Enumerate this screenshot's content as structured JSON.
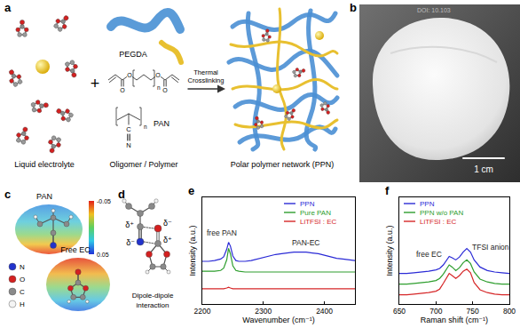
{
  "panels": {
    "a": {
      "label": "a",
      "liquid_electrolyte": "Liquid electrolyte",
      "plus": "+",
      "pegda": "PEGDA",
      "pan": "PAN",
      "pegda_structure": {
        "atoms": [
          "O",
          "O",
          "O",
          "O"
        ],
        "repeat": "n"
      },
      "pan_structure": {
        "atoms": [
          "C",
          "N"
        ],
        "repeat": "n"
      },
      "oligomer_polymer": "Oligomer / Polymer",
      "arrow_text": [
        "Thermal",
        "Crosslinking"
      ],
      "product": "Polar polymer network (PPN)"
    },
    "b": {
      "label": "b",
      "scale_bar": "1 cm",
      "watermark": "DOI: 10.103"
    },
    "c": {
      "label": "c",
      "molecules": [
        "PAN",
        "Free EC"
      ],
      "colorbar": {
        "range": [
          -0.05,
          0.05
        ],
        "ticks": [
          -0.05,
          0.05
        ]
      },
      "atom_legend": [
        "N",
        "O",
        "C",
        "H"
      ]
    },
    "d": {
      "label": "d",
      "charges": [
        "δ⁺",
        "δ⁻",
        "δ⁻",
        "δ⁺"
      ],
      "caption": [
        "Dipole-dipole",
        "interaction"
      ]
    }
  },
  "chart_data": [
    {
      "type": "line",
      "title": "e",
      "x_label": "Wavenumber (cm⁻¹)",
      "y_label": "Intensity (a.u.)",
      "x": [
        2200,
        2210,
        2220,
        2230,
        2235,
        2240,
        2243,
        2246,
        2250,
        2255,
        2260,
        2270,
        2280,
        2290,
        2300,
        2310,
        2320,
        2330,
        2340,
        2350,
        2360,
        2370,
        2380,
        2390,
        2400,
        2410,
        2420,
        2430,
        2440,
        2450
      ],
      "series": [
        {
          "name": "PPN",
          "color": "#2b2bd6",
          "values": [
            5.6,
            5.6,
            5.7,
            5.9,
            6.2,
            7.2,
            8.1,
            7.6,
            6.3,
            5.7,
            5.6,
            5.6,
            5.7,
            5.9,
            6.1,
            6.3,
            6.5,
            6.6,
            6.7,
            6.8,
            6.8,
            6.8,
            6.7,
            6.6,
            6.4,
            6.2,
            6.0,
            5.9,
            5.8,
            5.7
          ]
        },
        {
          "name": "Pure PAN",
          "color": "#2e9e2e",
          "values": [
            4.3,
            4.3,
            4.3,
            4.4,
            4.7,
            5.8,
            7.3,
            6.6,
            5.0,
            4.4,
            4.3,
            4.2,
            4.2,
            4.2,
            4.2,
            4.2,
            4.2,
            4.2,
            4.2,
            4.2,
            4.2,
            4.2,
            4.2,
            4.2,
            4.2,
            4.2,
            4.2,
            4.2,
            4.2,
            4.2
          ]
        },
        {
          "name": "LiTFSI : EC",
          "color": "#d62728",
          "values": [
            2.0,
            2.0,
            2.0,
            2.0,
            2.0,
            2.1,
            2.2,
            2.1,
            2.0,
            2.0,
            2.0,
            2.0,
            2.0,
            2.0,
            2.0,
            2.0,
            2.0,
            2.0,
            2.0,
            2.0,
            2.0,
            2.0,
            2.0,
            2.0,
            2.0,
            2.0,
            2.0,
            2.0,
            2.0,
            2.0
          ]
        }
      ],
      "xlim": [
        2200,
        2450
      ],
      "xticks": [
        2200,
        2300,
        2400
      ],
      "ylim": [
        0,
        14
      ],
      "tick_labels": "x",
      "grid": false,
      "legend": "top right",
      "annotations": [
        {
          "text": "free PAN",
          "x": 2232,
          "y": 9.3
        },
        {
          "text": "PAN-EC",
          "x": 2370,
          "y": 8.0
        }
      ]
    },
    {
      "type": "line",
      "title": "f",
      "x_label": "Raman shift (cm⁻¹)",
      "y_label": "Intensity (a.u.)",
      "x": [
        650,
        660,
        670,
        680,
        690,
        700,
        705,
        710,
        715,
        718,
        722,
        727,
        732,
        737,
        742,
        747,
        752,
        760,
        770,
        780,
        790,
        800
      ],
      "series": [
        {
          "name": "PPN",
          "color": "#2b2bd6",
          "values": [
            4.3,
            4.3,
            4.4,
            4.5,
            4.6,
            4.8,
            5.0,
            5.5,
            6.3,
            6.7,
            6.5,
            6.2,
            6.6,
            7.3,
            7.8,
            7.3,
            6.2,
            5.2,
            4.7,
            4.5,
            4.4,
            4.3
          ]
        },
        {
          "name": "PPN w/o PAN",
          "color": "#2e9e2e",
          "values": [
            2.8,
            2.8,
            2.9,
            3.0,
            3.1,
            3.3,
            3.6,
            4.2,
            5.1,
            5.5,
            5.2,
            4.7,
            5.1,
            5.8,
            6.2,
            5.7,
            4.5,
            3.5,
            3.1,
            2.9,
            2.8,
            2.8
          ]
        },
        {
          "name": "LiTFSI : EC",
          "color": "#d62728",
          "values": [
            1.3,
            1.3,
            1.4,
            1.5,
            1.6,
            1.8,
            2.1,
            2.9,
            3.9,
            4.3,
            4.0,
            3.6,
            4.0,
            4.6,
            4.9,
            4.4,
            3.0,
            2.0,
            1.6,
            1.4,
            1.3,
            1.3
          ]
        }
      ],
      "xlim": [
        650,
        800
      ],
      "xticks": [
        650,
        700,
        750,
        800
      ],
      "ylim": [
        0,
        15
      ],
      "tick_labels": "x",
      "grid": false,
      "legend": "top left",
      "annotations": [
        {
          "text": "free EC",
          "x": 690,
          "y": 7.0
        },
        {
          "text": "TFSI anion",
          "x": 775,
          "y": 8.0
        }
      ]
    }
  ]
}
